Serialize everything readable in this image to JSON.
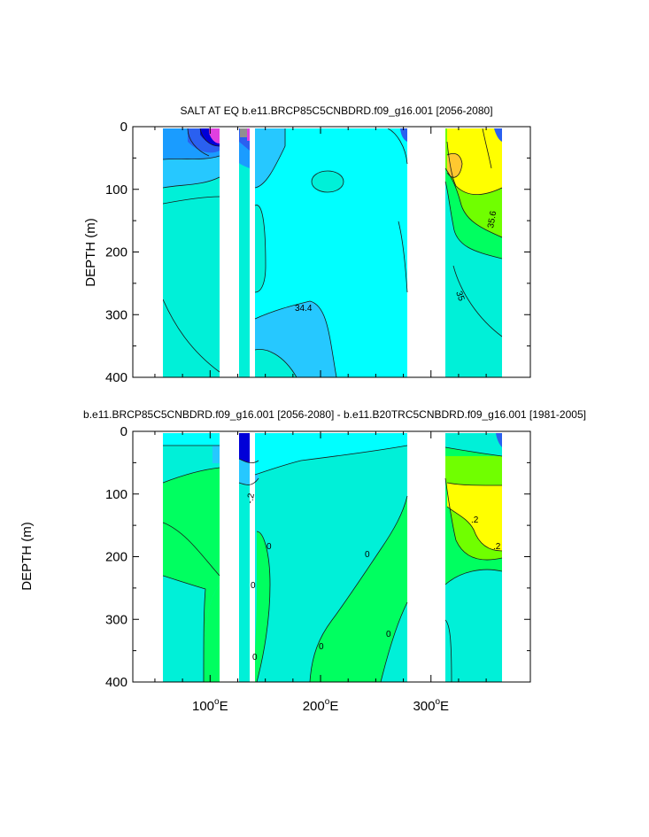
{
  "chart_data": [
    {
      "type": "contour",
      "title": "SALT AT EQ b.e11.BRCP85C5CNBDRD.f09_g16.001 [2056-2080]",
      "ylabel": "DEPTH (m)",
      "xlim": [
        30,
        390
      ],
      "ylim": [
        400,
        0
      ],
      "yticks": [
        "0",
        "100",
        "200",
        "300",
        "400"
      ],
      "contour_labels": [
        "34.4",
        "35.6",
        "35"
      ],
      "colors": {
        "deep_blue": "#0000d8",
        "blue": "#2a60f0",
        "mid_blue": "#1a9cff",
        "sky": "#26c8ff",
        "cyan": "#00ffff",
        "aqua": "#00f0d8",
        "green": "#00ff60",
        "lime": "#70ff00",
        "yellow": "#ffff00",
        "orange": "#ffc830",
        "magenta": "#e040e0",
        "gray": "#909090"
      }
    },
    {
      "type": "contour",
      "title": "b.e11.BRCP85C5CNBDRD.f09_g16.001 [2056-2080] - b.e11.B20TRC5CNBDRD.f09_g16.001 [1981-2005]",
      "ylabel": "DEPTH (m)",
      "xlim": [
        30,
        390
      ],
      "ylim": [
        400,
        0
      ],
      "yticks": [
        "0",
        "100",
        "200",
        "300",
        "400"
      ],
      "xticks": [
        {
          "value": 100,
          "num": "100",
          "sup": "o",
          "dir": "E"
        },
        {
          "value": 200,
          "num": "200",
          "sup": "o",
          "dir": "E"
        },
        {
          "value": 300,
          "num": "300",
          "sup": "o",
          "dir": "E"
        }
      ],
      "contour_labels": [
        "-.2",
        "0",
        "0",
        "0",
        "0",
        "0",
        "0",
        ".2",
        ".2"
      ]
    }
  ]
}
